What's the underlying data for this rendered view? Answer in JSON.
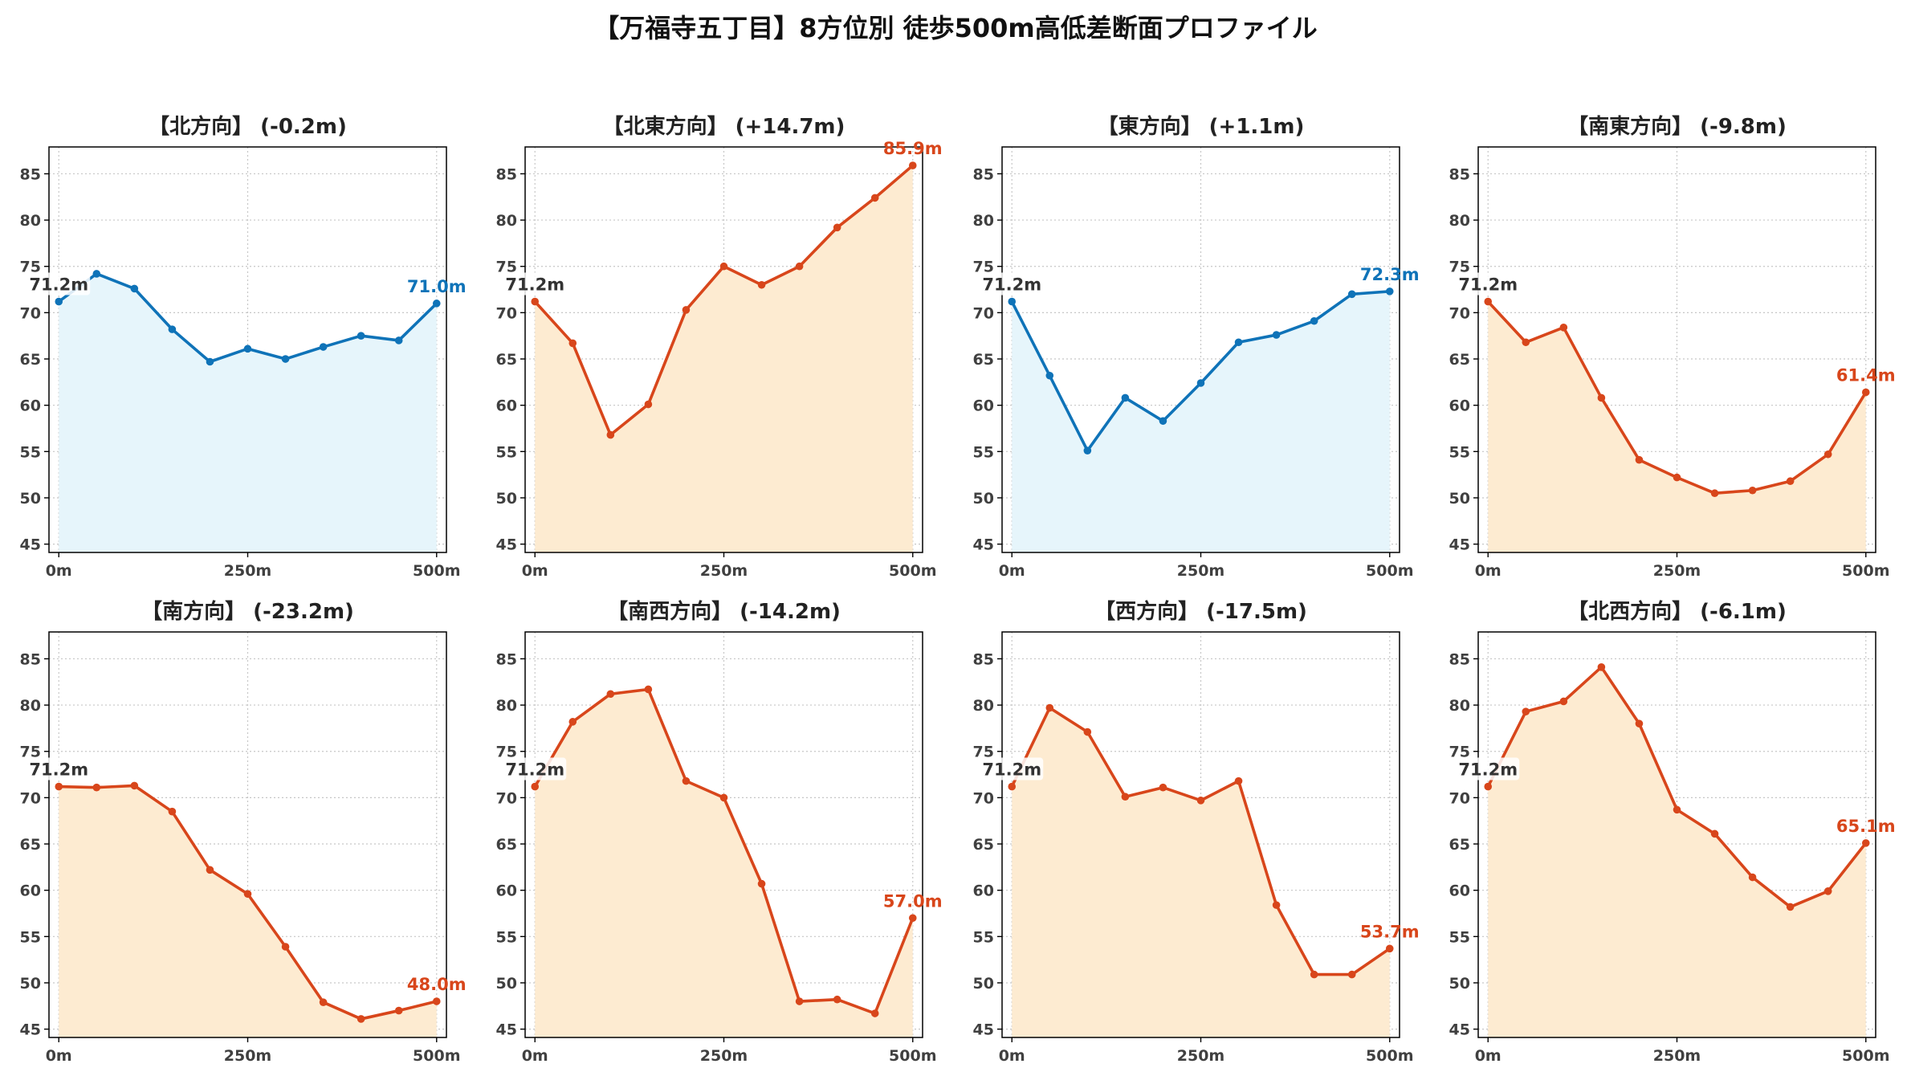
{
  "figure": {
    "title": "【万福寺五丁目】8方位別 徒歩500m高低差断面プロファイル"
  },
  "chart_data": [
    {
      "type": "area",
      "title": "【北方向】 (-0.2m)",
      "x": [
        0,
        50,
        100,
        150,
        200,
        250,
        300,
        350,
        400,
        450,
        500
      ],
      "values": [
        71.2,
        74.2,
        72.6,
        68.2,
        64.7,
        66.1,
        65.0,
        66.3,
        67.5,
        67.0,
        71.0
      ],
      "start_label": "71.2m",
      "end_label": "71.0m",
      "line_color": "#0f73b8",
      "fill_color": "#e6f5fb",
      "start_label_color": "#333333",
      "end_label_color": "#0f73b8",
      "xlim": [
        -13,
        513
      ],
      "ylim": [
        44.1,
        87.9
      ],
      "xticks": [
        0,
        250,
        500
      ],
      "xtick_labels": [
        "0m",
        "250m",
        "500m"
      ],
      "yticks": [
        45,
        50,
        55,
        60,
        65,
        70,
        75,
        80,
        85
      ],
      "grid": true
    },
    {
      "type": "area",
      "title": "【北東方向】 (+14.7m)",
      "x": [
        0,
        50,
        100,
        150,
        200,
        250,
        300,
        350,
        400,
        450,
        500
      ],
      "values": [
        71.2,
        66.7,
        56.8,
        60.1,
        70.3,
        75.0,
        73.0,
        75.0,
        79.2,
        82.4,
        85.9
      ],
      "start_label": "71.2m",
      "end_label": "85.9m",
      "line_color": "#d8461b",
      "fill_color": "#fdebd1",
      "start_label_color": "#333333",
      "end_label_color": "#d8461b",
      "xlim": [
        -13,
        513
      ],
      "ylim": [
        44.1,
        87.9
      ],
      "xticks": [
        0,
        250,
        500
      ],
      "xtick_labels": [
        "0m",
        "250m",
        "500m"
      ],
      "yticks": [
        45,
        50,
        55,
        60,
        65,
        70,
        75,
        80,
        85
      ],
      "grid": true
    },
    {
      "type": "area",
      "title": "【東方向】 (+1.1m)",
      "x": [
        0,
        50,
        100,
        150,
        200,
        250,
        300,
        350,
        400,
        450,
        500
      ],
      "values": [
        71.2,
        63.2,
        55.1,
        60.8,
        58.3,
        62.4,
        66.8,
        67.6,
        69.1,
        72.0,
        72.3
      ],
      "start_label": "71.2m",
      "end_label": "72.3m",
      "line_color": "#0f73b8",
      "fill_color": "#e6f5fb",
      "start_label_color": "#333333",
      "end_label_color": "#0f73b8",
      "xlim": [
        -13,
        513
      ],
      "ylim": [
        44.1,
        87.9
      ],
      "xticks": [
        0,
        250,
        500
      ],
      "xtick_labels": [
        "0m",
        "250m",
        "500m"
      ],
      "yticks": [
        45,
        50,
        55,
        60,
        65,
        70,
        75,
        80,
        85
      ],
      "grid": true
    },
    {
      "type": "area",
      "title": "【南東方向】 (-9.8m)",
      "x": [
        0,
        50,
        100,
        150,
        200,
        250,
        300,
        350,
        400,
        450,
        500
      ],
      "values": [
        71.2,
        66.8,
        68.4,
        60.8,
        54.1,
        52.2,
        50.5,
        50.8,
        51.8,
        54.7,
        61.4
      ],
      "start_label": "71.2m",
      "end_label": "61.4m",
      "line_color": "#d8461b",
      "fill_color": "#fdebd1",
      "start_label_color": "#333333",
      "end_label_color": "#d8461b",
      "xlim": [
        -13,
        513
      ],
      "ylim": [
        44.1,
        87.9
      ],
      "xticks": [
        0,
        250,
        500
      ],
      "xtick_labels": [
        "0m",
        "250m",
        "500m"
      ],
      "yticks": [
        45,
        50,
        55,
        60,
        65,
        70,
        75,
        80,
        85
      ],
      "grid": true
    },
    {
      "type": "area",
      "title": "【南方向】 (-23.2m)",
      "x": [
        0,
        50,
        100,
        150,
        200,
        250,
        300,
        350,
        400,
        450,
        500
      ],
      "values": [
        71.2,
        71.1,
        71.3,
        68.5,
        62.2,
        59.6,
        53.9,
        47.9,
        46.1,
        47.0,
        48.0
      ],
      "start_label": "71.2m",
      "end_label": "48.0m",
      "line_color": "#d8461b",
      "fill_color": "#fdebd1",
      "start_label_color": "#333333",
      "end_label_color": "#d8461b",
      "xlim": [
        -13,
        513
      ],
      "ylim": [
        44.1,
        87.9
      ],
      "xticks": [
        0,
        250,
        500
      ],
      "xtick_labels": [
        "0m",
        "250m",
        "500m"
      ],
      "yticks": [
        45,
        50,
        55,
        60,
        65,
        70,
        75,
        80,
        85
      ],
      "grid": true
    },
    {
      "type": "area",
      "title": "【南西方向】 (-14.2m)",
      "x": [
        0,
        50,
        100,
        150,
        200,
        250,
        300,
        350,
        400,
        450,
        500
      ],
      "values": [
        71.2,
        78.2,
        81.2,
        81.7,
        71.8,
        70.0,
        60.7,
        48.0,
        48.2,
        46.7,
        57.0
      ],
      "start_label": "71.2m",
      "end_label": "57.0m",
      "line_color": "#d8461b",
      "fill_color": "#fdebd1",
      "start_label_color": "#333333",
      "end_label_color": "#d8461b",
      "xlim": [
        -13,
        513
      ],
      "ylim": [
        44.1,
        87.9
      ],
      "xticks": [
        0,
        250,
        500
      ],
      "xtick_labels": [
        "0m",
        "250m",
        "500m"
      ],
      "yticks": [
        45,
        50,
        55,
        60,
        65,
        70,
        75,
        80,
        85
      ],
      "grid": true
    },
    {
      "type": "area",
      "title": "【西方向】 (-17.5m)",
      "x": [
        0,
        50,
        100,
        150,
        200,
        250,
        300,
        350,
        400,
        450,
        500
      ],
      "values": [
        71.2,
        79.7,
        77.1,
        70.1,
        71.1,
        69.7,
        71.8,
        58.4,
        50.9,
        50.9,
        53.7
      ],
      "start_label": "71.2m",
      "end_label": "53.7m",
      "line_color": "#d8461b",
      "fill_color": "#fdebd1",
      "start_label_color": "#333333",
      "end_label_color": "#d8461b",
      "xlim": [
        -13,
        513
      ],
      "ylim": [
        44.1,
        87.9
      ],
      "xticks": [
        0,
        250,
        500
      ],
      "xtick_labels": [
        "0m",
        "250m",
        "500m"
      ],
      "yticks": [
        45,
        50,
        55,
        60,
        65,
        70,
        75,
        80,
        85
      ],
      "grid": true
    },
    {
      "type": "area",
      "title": "【北西方向】 (-6.1m)",
      "x": [
        0,
        50,
        100,
        150,
        200,
        250,
        300,
        350,
        400,
        450,
        500
      ],
      "values": [
        71.2,
        79.3,
        80.4,
        84.1,
        78.0,
        68.7,
        66.1,
        61.4,
        58.2,
        59.9,
        65.1
      ],
      "start_label": "71.2m",
      "end_label": "65.1m",
      "line_color": "#d8461b",
      "fill_color": "#fdebd1",
      "start_label_color": "#333333",
      "end_label_color": "#d8461b",
      "xlim": [
        -13,
        513
      ],
      "ylim": [
        44.1,
        87.9
      ],
      "xticks": [
        0,
        250,
        500
      ],
      "xtick_labels": [
        "0m",
        "250m",
        "500m"
      ],
      "yticks": [
        45,
        50,
        55,
        60,
        65,
        70,
        75,
        80,
        85
      ],
      "grid": true
    }
  ]
}
